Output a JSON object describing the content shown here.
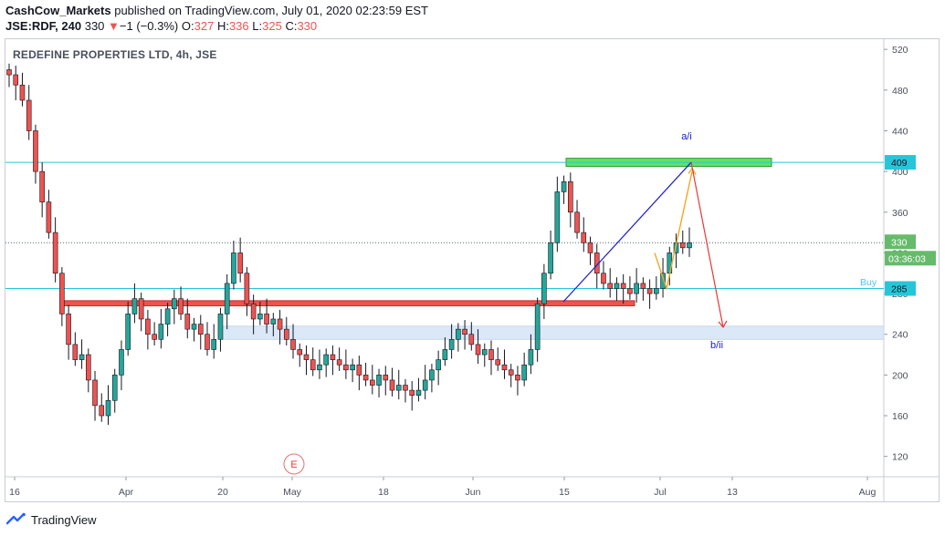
{
  "header": {
    "publisher": "CashCow_Markets",
    "published_text": " published on TradingView.com, July 01, 2020 02:23:59 EST",
    "symbol": "JSE:RDF, 240",
    "last": "330",
    "change_arrow": "▼",
    "change": "−1 (−0.3%)",
    "o_label": "O:",
    "o": "327",
    "h_label": "H:",
    "h": "336",
    "l_label": "L:",
    "l": "325",
    "c_label": "C:",
    "c": "330"
  },
  "footer": {
    "brand": "TradingView"
  },
  "colors": {
    "up": "#26a69a",
    "down": "#ef5350",
    "wick": "#131722",
    "cyan": "#26c6da",
    "blue": "#1a1ad6",
    "orange": "#f5a623",
    "redline": "#e53935",
    "green_zone": "#66e066",
    "red_zone": "#ef5350",
    "blue_zone": "#dbe8f7",
    "price_box": "#66bb6a"
  },
  "chart_data": {
    "type": "candlestick",
    "title": "REDEFINE PROPERTIES LTD, 4h, JSE",
    "ylim": [
      100,
      530
    ],
    "yticks": [
      120,
      160,
      200,
      240,
      280,
      320,
      360,
      400,
      440,
      480,
      520
    ],
    "xticks": [
      "16",
      "Apr",
      "20",
      "May",
      "18",
      "Jun",
      "15",
      "Jul",
      "13",
      "Aug"
    ],
    "levels": [
      {
        "value": 409,
        "label": "409"
      },
      {
        "value": 285,
        "label": "285"
      }
    ],
    "last_price": {
      "value": 330,
      "label": "330",
      "countdown": "03:36:03"
    },
    "annotations": {
      "a": "a/i",
      "b": "b/ii",
      "buy": "Buy",
      "event": "E"
    },
    "zones": [
      {
        "name": "resistance",
        "low": 405,
        "high": 413
      },
      {
        "name": "support",
        "low": 268,
        "high": 273
      },
      {
        "name": "target",
        "low": 235,
        "high": 248
      }
    ],
    "closes": [
      495,
      485,
      470,
      440,
      400,
      370,
      340,
      300,
      260,
      230,
      215,
      220,
      195,
      170,
      160,
      175,
      200,
      225,
      260,
      275,
      255,
      240,
      235,
      250,
      265,
      275,
      260,
      245,
      250,
      240,
      225,
      235,
      260,
      290,
      320,
      300,
      270,
      255,
      260,
      250,
      255,
      245,
      235,
      225,
      220,
      215,
      205,
      210,
      220,
      215,
      210,
      205,
      210,
      200,
      195,
      190,
      200,
      195,
      185,
      190,
      185,
      180,
      185,
      195,
      205,
      215,
      225,
      235,
      245,
      240,
      230,
      220,
      225,
      215,
      210,
      205,
      200,
      195,
      210,
      225,
      270,
      300,
      330,
      380,
      390,
      360,
      340,
      330,
      320,
      300,
      290,
      285,
      290,
      285,
      280,
      290,
      285,
      280,
      285,
      300,
      320,
      330,
      325,
      330
    ]
  }
}
